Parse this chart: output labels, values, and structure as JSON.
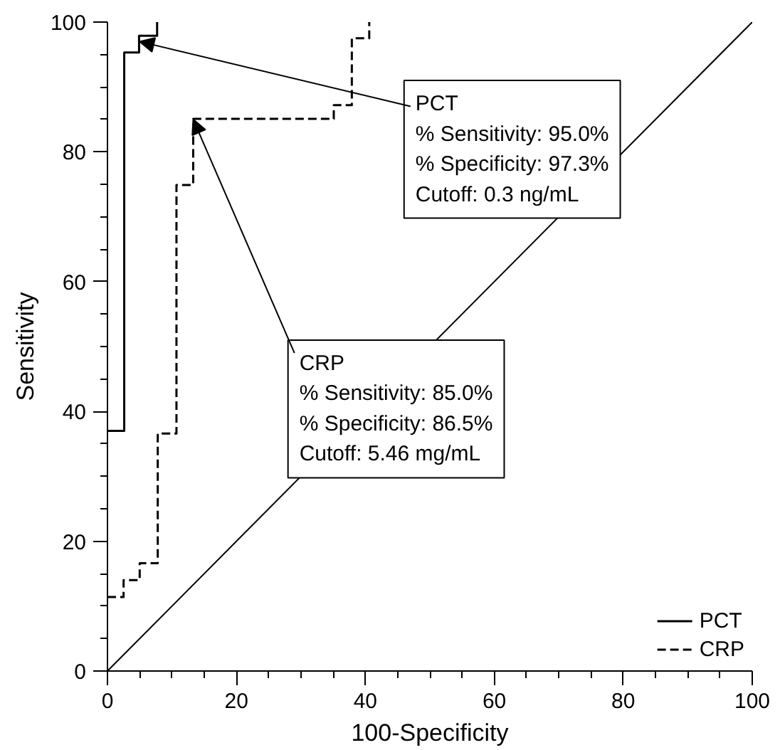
{
  "chart_data": {
    "type": "step",
    "xlabel": "100-Specificity",
    "ylabel": "Sensitivity",
    "series": [
      {
        "name": "PCT",
        "color": "#000000",
        "line_style": "solid",
        "x": [
          0,
          2.6,
          2.6,
          4.9,
          4.9,
          7.7
        ],
        "values": [
          37,
          40,
          95.3,
          95.3,
          97.9,
          100
        ]
      },
      {
        "name": "CRP",
        "color": "#000000",
        "line_style": "dashed",
        "x": [
          0,
          2.5,
          2.5,
          5.0,
          5.0,
          7.8,
          7.8,
          10.7,
          10.7,
          13.3,
          13.3,
          35.1,
          35.1,
          37.9,
          37.9,
          40.6,
          40.6
        ],
        "values": [
          11.4,
          11.4,
          14.0,
          14.0,
          16.6,
          16.6,
          36.6,
          36.6,
          74.9,
          74.9,
          85.1,
          85.1,
          87.2,
          87.2,
          97.5,
          97.5,
          100
        ]
      },
      {
        "type": "line",
        "color": "#000000",
        "line_style": "solid",
        "x": [
          0,
          100
        ],
        "values": [
          0,
          100
        ]
      }
    ],
    "annotations": [
      {
        "text": "PCT\n% Sensitivity: 95.0%\n% Specificity: 97.3%\nCutoff: 0.3 ng/mL",
        "x": 5,
        "y": 97
      },
      {
        "text": "CRP\n% Sensitivity: 85.0%\n% Specificity: 86.5%\nCutoff: 5.46 mg/mL",
        "x": 13.3,
        "y": 85
      }
    ],
    "xlim": [
      0,
      100
    ],
    "ylim": [
      0,
      100
    ],
    "xticks": [
      0,
      20,
      40,
      60,
      80,
      100
    ],
    "yticks": [
      0,
      20,
      40,
      60,
      80,
      100
    ],
    "grid": false,
    "legend": "bottom right",
    "marker": "none"
  }
}
